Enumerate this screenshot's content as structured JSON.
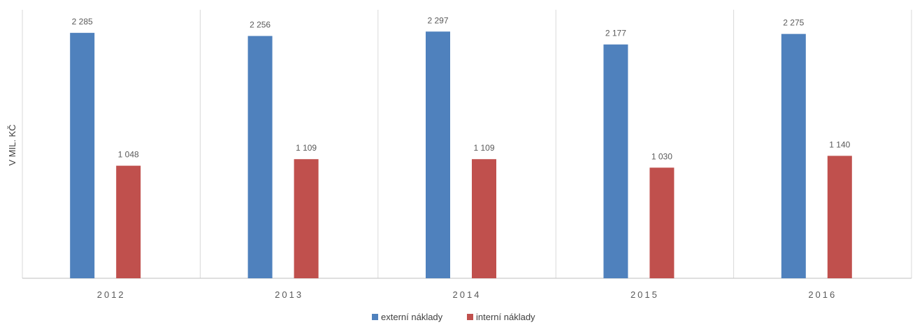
{
  "chart_data": {
    "type": "bar",
    "title": "",
    "xlabel": "",
    "ylabel": "V MIL. KČ",
    "categories": [
      "2012",
      "2013",
      "2014",
      "2015",
      "2016"
    ],
    "series": [
      {
        "name": "externí náklady",
        "color": "#4F81BD",
        "values": [
          2285,
          2256,
          2297,
          2177,
          2275
        ],
        "labels": [
          "2 285",
          "2 256",
          "2 297",
          "2 177",
          "2 275"
        ]
      },
      {
        "name": "interní náklady",
        "color": "#C0504D",
        "values": [
          1048,
          1109,
          1109,
          1030,
          1140
        ],
        "labels": [
          "1 048",
          "1 109",
          "1 109",
          "1 030",
          "1 140"
        ]
      }
    ],
    "ylim": [
      0,
      2500
    ],
    "grid": "vertical category separators",
    "legend": "bottom-center"
  }
}
